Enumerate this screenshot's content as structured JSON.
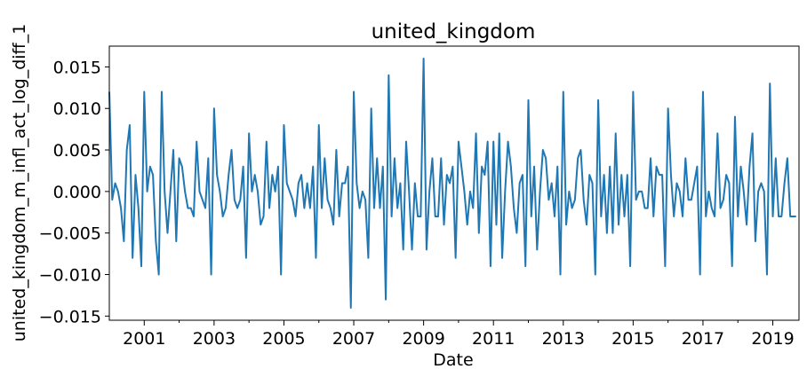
{
  "chart_data": {
    "type": "line",
    "title": "united_kingdom",
    "xlabel": "Date",
    "ylabel": "united_kingdom_m_infl_act_log_diff_1",
    "xlim": [
      2000.0,
      2019.75
    ],
    "ylim": [
      -0.0155,
      0.0175
    ],
    "x_ticks": [
      2001,
      2003,
      2005,
      2007,
      2009,
      2011,
      2013,
      2015,
      2017,
      2019
    ],
    "x_tick_labels": [
      "2001",
      "2003",
      "2005",
      "2007",
      "2009",
      "2011",
      "2013",
      "2015",
      "2017",
      "2019"
    ],
    "y_ticks": [
      -0.015,
      -0.01,
      -0.005,
      0.0,
      0.005,
      0.01,
      0.015
    ],
    "y_tick_labels": [
      "−0.015",
      "−0.010",
      "−0.005",
      "0.000",
      "0.005",
      "0.010",
      "0.015"
    ],
    "grid": false,
    "color": "#1f77b4",
    "x_start": 2000.0,
    "x_step": 0.0833333,
    "series": [
      {
        "name": "",
        "values": [
          0.012,
          -0.001,
          0.001,
          0.0,
          -0.002,
          -0.006,
          0.005,
          0.008,
          -0.008,
          0.002,
          -0.002,
          -0.009,
          0.012,
          0.0,
          0.003,
          0.002,
          -0.006,
          -0.01,
          0.012,
          0.0,
          -0.005,
          0.0,
          0.005,
          -0.006,
          0.004,
          0.003,
          0.0,
          -0.002,
          -0.002,
          -0.003,
          0.006,
          0.0,
          -0.001,
          -0.002,
          0.004,
          -0.01,
          0.01,
          0.002,
          0.0,
          -0.003,
          -0.002,
          0.002,
          0.005,
          -0.001,
          -0.002,
          -0.001,
          0.003,
          -0.008,
          0.007,
          0.0,
          0.002,
          0.0,
          -0.004,
          -0.003,
          0.006,
          -0.002,
          0.002,
          0.0,
          0.003,
          -0.01,
          0.008,
          0.001,
          0.0,
          -0.001,
          -0.003,
          0.001,
          0.002,
          -0.002,
          0.001,
          -0.002,
          0.003,
          -0.008,
          0.008,
          -0.002,
          0.004,
          -0.001,
          -0.002,
          -0.004,
          0.005,
          -0.003,
          0.001,
          0.001,
          0.003,
          -0.014,
          0.012,
          0.001,
          -0.002,
          0.0,
          -0.001,
          -0.008,
          0.01,
          -0.002,
          0.004,
          -0.002,
          0.003,
          -0.013,
          0.014,
          -0.003,
          0.004,
          -0.002,
          0.001,
          -0.007,
          0.006,
          0.0,
          -0.007,
          0.001,
          -0.003,
          -0.003,
          0.016,
          -0.007,
          0.0,
          0.004,
          -0.003,
          -0.003,
          0.004,
          -0.004,
          0.002,
          0.001,
          0.003,
          -0.008,
          0.006,
          0.003,
          0.0,
          -0.004,
          0.0,
          -0.002,
          0.007,
          -0.005,
          0.003,
          0.002,
          0.006,
          -0.009,
          0.006,
          -0.004,
          0.007,
          -0.008,
          0.0,
          0.006,
          0.003,
          -0.002,
          -0.005,
          0.001,
          0.002,
          -0.009,
          0.011,
          -0.003,
          0.003,
          -0.007,
          0.0,
          0.005,
          0.004,
          -0.001,
          0.001,
          -0.003,
          0.003,
          -0.01,
          0.012,
          -0.004,
          0.0,
          -0.002,
          -0.001,
          0.004,
          0.005,
          -0.001,
          -0.004,
          0.002,
          0.001,
          -0.01,
          0.011,
          -0.003,
          0.002,
          -0.005,
          0.003,
          -0.005,
          0.007,
          -0.004,
          0.002,
          -0.003,
          0.002,
          -0.009,
          0.012,
          -0.001,
          0.0,
          0.0,
          -0.002,
          -0.002,
          0.004,
          -0.003,
          0.003,
          0.002,
          0.002,
          -0.009,
          0.01,
          0.002,
          -0.003,
          0.001,
          0.0,
          -0.003,
          0.004,
          -0.001,
          -0.001,
          0.001,
          0.003,
          -0.01,
          0.012,
          -0.003,
          0.0,
          -0.002,
          -0.003,
          0.007,
          -0.002,
          -0.001,
          0.002,
          0.001,
          -0.009,
          0.009,
          -0.003,
          0.003,
          0.0,
          -0.004,
          0.003,
          0.007,
          -0.006,
          0.0,
          0.001,
          0.0,
          -0.01,
          0.013,
          -0.003,
          0.004,
          -0.003,
          -0.003,
          0.001,
          0.004,
          -0.003,
          -0.003,
          -0.003
        ]
      }
    ]
  }
}
